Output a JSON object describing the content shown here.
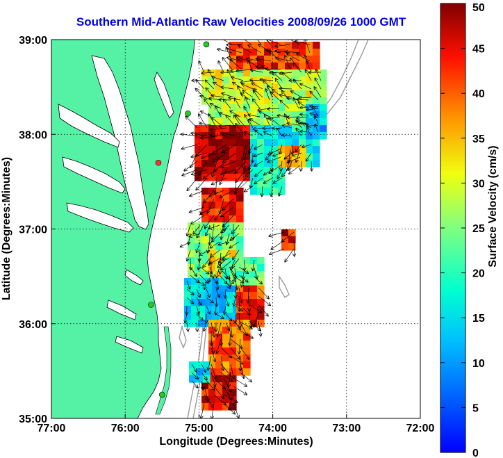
{
  "title": "Southern Mid-Atlantic Raw Velocities 2008/09/26 1000 GMT",
  "map": {
    "x_axis_label": "Longitude (Degrees:Minutes)",
    "y_axis_label": "Latitude (Degrees:Minutes)",
    "lon_range": [
      -77,
      -72
    ],
    "lat_range": [
      35,
      39
    ],
    "lon_ticks": [
      {
        "value": -77,
        "label": "77:00"
      },
      {
        "value": -76,
        "label": "76:00"
      },
      {
        "value": -75,
        "label": "75:00"
      },
      {
        "value": -74,
        "label": "74:00"
      },
      {
        "value": -73,
        "label": "73:00"
      },
      {
        "value": -72,
        "label": "72:00"
      }
    ],
    "lat_ticks": [
      {
        "value": 39,
        "label": "39:00"
      },
      {
        "value": 38,
        "label": "38:00"
      },
      {
        "value": 37,
        "label": "37:00"
      },
      {
        "value": 36,
        "label": "36:00"
      },
      {
        "value": 35,
        "label": "35:00"
      }
    ],
    "grid": "dotted",
    "land_color": "#55f2a6",
    "bathymetry_color": "#9a9a9a",
    "arrow_color": "#000000",
    "stations": [
      {
        "lon": -74.9,
        "lat": 38.95,
        "color": "#22cc22"
      },
      {
        "lon": -75.15,
        "lat": 38.22,
        "color": "#22cc22"
      },
      {
        "lon": -75.55,
        "lat": 37.7,
        "color": "#ff3030"
      },
      {
        "lon": -75.65,
        "lat": 36.2,
        "color": "#22cc22"
      },
      {
        "lon": -75.5,
        "lat": 35.25,
        "color": "#22cc22"
      }
    ]
  },
  "colorbar": {
    "label": "Surface Velocity (cm/s)",
    "min": 0,
    "max": 50,
    "ticks": [
      "0",
      "5",
      "10",
      "15",
      "20",
      "25",
      "30",
      "35",
      "40",
      "45",
      "50"
    ],
    "colormap": "jet"
  }
}
